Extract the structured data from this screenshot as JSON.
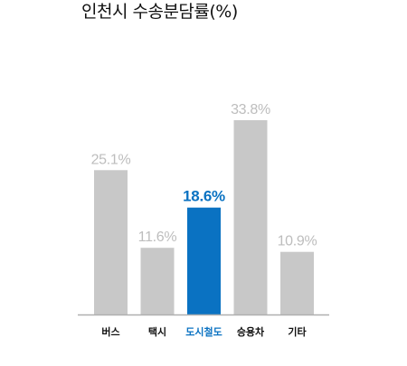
{
  "title": "인천시 수송분담률(%)",
  "colors": {
    "bar_default": "#c8c8c8",
    "bar_highlight": "#0a72c2",
    "label_default": "#bdbdbd",
    "label_highlight": "#0a72c2",
    "category_default": "#111111",
    "category_highlight": "#0a72c2",
    "baseline": "#b0b0b0"
  },
  "chart_data": {
    "type": "bar",
    "title": "인천시 수송분담률(%)",
    "xlabel": "",
    "ylabel": "",
    "categories": [
      "버스",
      "택시",
      "도시철도",
      "승용차",
      "기타"
    ],
    "values": [
      25.1,
      11.6,
      18.6,
      33.8,
      10.9
    ],
    "data_labels": [
      "25.1%",
      "11.6%",
      "18.6%",
      "33.8%",
      "10.9%"
    ],
    "highlight": "도시철도",
    "ylim": [
      0,
      33.8
    ],
    "grid": false,
    "legend": "none"
  }
}
